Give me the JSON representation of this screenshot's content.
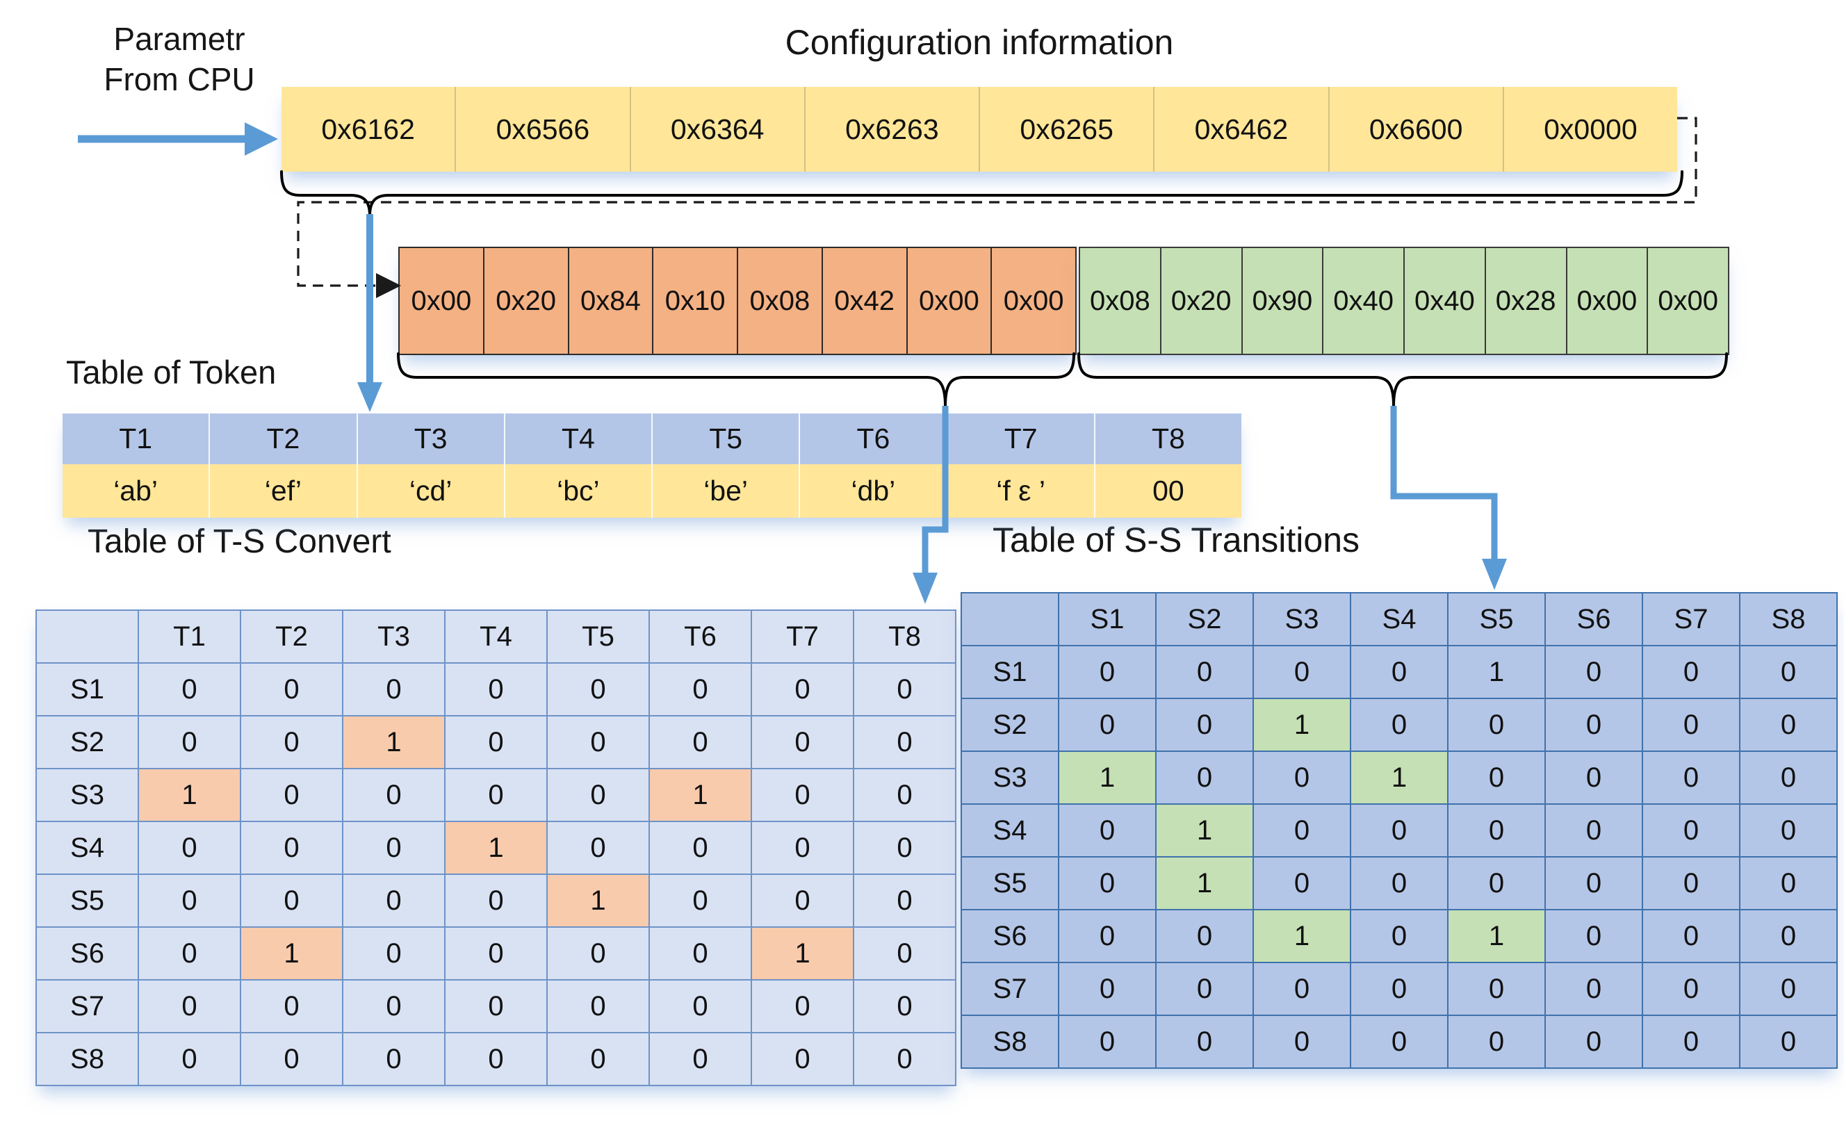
{
  "titles": {
    "config": "Configuration information",
    "param_line1": "Parametr",
    "param_line2": "From CPU",
    "token": "Table of Token",
    "ts": "Table of T-S Convert",
    "ss": "Table of S-S Transitions"
  },
  "config_row": [
    "0x6162",
    "0x6566",
    "0x6364",
    "0x6263",
    "0x6265",
    "0x6462",
    "0x6600",
    "0x0000"
  ],
  "ts_bytes": [
    "0x00",
    "0x20",
    "0x84",
    "0x10",
    "0x08",
    "0x42",
    "0x00",
    "0x00"
  ],
  "ss_bytes": [
    "0x08",
    "0x20",
    "0x90",
    "0x40",
    "0x40",
    "0x28",
    "0x00",
    "0x00"
  ],
  "token_table": {
    "headers": [
      "T1",
      "T2",
      "T3",
      "T4",
      "T5",
      "T6",
      "T7",
      "T8"
    ],
    "values": [
      "‘ab’",
      "‘ef’",
      "‘cd’",
      "‘bc’",
      "‘be’",
      "‘db’",
      "‘f ε ’",
      "00"
    ]
  },
  "ts_table": {
    "col_headers": [
      "T1",
      "T2",
      "T3",
      "T4",
      "T5",
      "T6",
      "T7",
      "T8"
    ],
    "rows": [
      {
        "label": "S1",
        "cells": [
          "0",
          "0",
          "0",
          "0",
          "0",
          "0",
          "0",
          "0"
        ]
      },
      {
        "label": "S2",
        "cells": [
          "0",
          "0",
          "1",
          "0",
          "0",
          "0",
          "0",
          "0"
        ]
      },
      {
        "label": "S3",
        "cells": [
          "1",
          "0",
          "0",
          "0",
          "0",
          "1",
          "0",
          "0"
        ]
      },
      {
        "label": "S4",
        "cells": [
          "0",
          "0",
          "0",
          "1",
          "0",
          "0",
          "0",
          "0"
        ]
      },
      {
        "label": "S5",
        "cells": [
          "0",
          "0",
          "0",
          "0",
          "1",
          "0",
          "0",
          "0"
        ]
      },
      {
        "label": "S6",
        "cells": [
          "0",
          "1",
          "0",
          "0",
          "0",
          "0",
          "1",
          "0"
        ]
      },
      {
        "label": "S7",
        "cells": [
          "0",
          "0",
          "0",
          "0",
          "0",
          "0",
          "0",
          "0"
        ]
      },
      {
        "label": "S8",
        "cells": [
          "0",
          "0",
          "0",
          "0",
          "0",
          "0",
          "0",
          "0"
        ]
      }
    ],
    "highlights": [
      [
        1,
        2
      ],
      [
        2,
        0
      ],
      [
        2,
        5
      ],
      [
        3,
        3
      ],
      [
        4,
        4
      ],
      [
        5,
        1
      ],
      [
        5,
        6
      ]
    ]
  },
  "ss_table": {
    "col_headers": [
      "S1",
      "S2",
      "S3",
      "S4",
      "S5",
      "S6",
      "S7",
      "S8"
    ],
    "rows": [
      {
        "label": "S1",
        "cells": [
          "0",
          "0",
          "0",
          "0",
          "1",
          "0",
          "0",
          "0"
        ]
      },
      {
        "label": "S2",
        "cells": [
          "0",
          "0",
          "1",
          "0",
          "0",
          "0",
          "0",
          "0"
        ]
      },
      {
        "label": "S3",
        "cells": [
          "1",
          "0",
          "0",
          "1",
          "0",
          "0",
          "0",
          "0"
        ]
      },
      {
        "label": "S4",
        "cells": [
          "0",
          "1",
          "0",
          "0",
          "0",
          "0",
          "0",
          "0"
        ]
      },
      {
        "label": "S5",
        "cells": [
          "0",
          "1",
          "0",
          "0",
          "0",
          "0",
          "0",
          "0"
        ]
      },
      {
        "label": "S6",
        "cells": [
          "0",
          "0",
          "1",
          "0",
          "1",
          "0",
          "0",
          "0"
        ]
      },
      {
        "label": "S7",
        "cells": [
          "0",
          "0",
          "0",
          "0",
          "0",
          "0",
          "0",
          "0"
        ]
      },
      {
        "label": "S8",
        "cells": [
          "0",
          "0",
          "0",
          "0",
          "0",
          "0",
          "0",
          "0"
        ]
      }
    ],
    "highlights": [
      [
        1,
        2
      ],
      [
        2,
        0
      ],
      [
        2,
        3
      ],
      [
        3,
        1
      ],
      [
        4,
        1
      ],
      [
        5,
        2
      ],
      [
        5,
        4
      ]
    ]
  },
  "colors": {
    "accent_blue": "#5B9BD5",
    "config_cell_yellow": "#FFE699",
    "ts_bytes_orange": "#F4B183",
    "ss_bytes_green": "#C5E0B4",
    "token_header_blue": "#B4C6E7",
    "ts_cell_blue": "#D9E2F3",
    "ts_highlight_orange": "#F8CBAD",
    "ss_cell_blue": "#B4C6E7",
    "ss_highlight_green": "#C5E0B4"
  }
}
